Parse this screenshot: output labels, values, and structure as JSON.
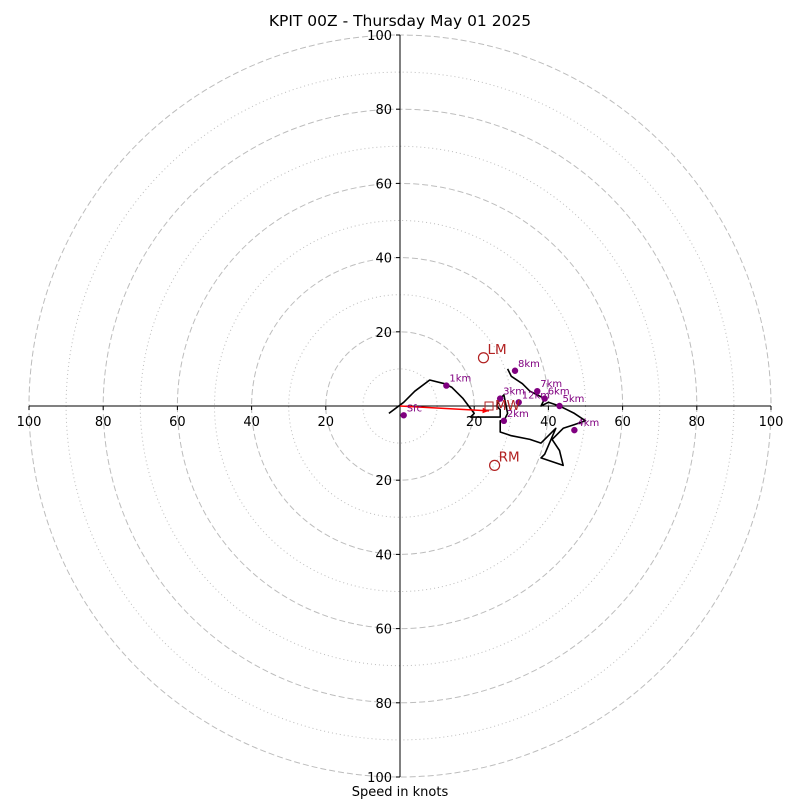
{
  "chart_data": {
    "type": "scatter",
    "title": "KPIT 00Z - Thursday May 01 2025",
    "xlabel": "Speed in knots",
    "ylabel": "",
    "units": "knots",
    "rings": {
      "major": [
        20,
        40,
        60,
        80,
        100
      ],
      "minor": [
        10,
        30,
        50,
        70,
        90
      ]
    },
    "axis_ticks": {
      "right": [
        "20",
        "40",
        "60",
        "80",
        "100"
      ],
      "left": [
        "20",
        "40",
        "60",
        "80",
        "100"
      ],
      "top": [
        "20",
        "40",
        "60",
        "80",
        "100"
      ],
      "bottom": [
        "20",
        "40",
        "60",
        "80",
        "100"
      ]
    },
    "xlim": [
      -100,
      100
    ],
    "ylim": [
      -100,
      100
    ],
    "hodograph_trace": [
      [
        -3,
        -2
      ],
      [
        1,
        1
      ],
      [
        4,
        4
      ],
      [
        8,
        7
      ],
      [
        12,
        6
      ],
      [
        14,
        5
      ],
      [
        17,
        2
      ],
      [
        20,
        -2
      ],
      [
        19,
        -3
      ],
      [
        23,
        -3
      ],
      [
        27,
        -3
      ],
      [
        27,
        -1
      ],
      [
        26,
        0
      ],
      [
        27,
        2
      ],
      [
        28,
        3
      ],
      [
        29,
        -2
      ],
      [
        28,
        -4
      ],
      [
        27,
        -4
      ],
      [
        27,
        -5
      ],
      [
        27,
        -7
      ],
      [
        30,
        -8
      ],
      [
        35,
        -9
      ],
      [
        38,
        -10
      ],
      [
        40,
        -8
      ],
      [
        42,
        -6
      ],
      [
        39,
        -13
      ],
      [
        38,
        -14
      ],
      [
        44,
        -16
      ],
      [
        43,
        -12
      ],
      [
        41,
        -9
      ],
      [
        44,
        -6
      ],
      [
        47,
        -5
      ],
      [
        50,
        -4
      ],
      [
        47,
        -2
      ],
      [
        45,
        -1
      ],
      [
        43,
        0
      ],
      [
        40,
        1
      ],
      [
        38,
        0
      ],
      [
        39,
        2
      ],
      [
        37,
        3
      ],
      [
        35,
        4
      ],
      [
        33,
        6
      ],
      [
        30,
        8
      ],
      [
        29,
        10
      ]
    ],
    "height_markers": [
      {
        "label": "Sfc",
        "x": 1,
        "y": -2.5
      },
      {
        "label": "1km",
        "x": 12.5,
        "y": 5.5
      },
      {
        "label": "2km",
        "x": 28,
        "y": -4
      },
      {
        "label": "3km",
        "x": 27,
        "y": 2
      },
      {
        "label": "4km",
        "x": 47,
        "y": -6.5
      },
      {
        "label": "5km",
        "x": 43,
        "y": 0
      },
      {
        "label": "6km",
        "x": 39,
        "y": 2
      },
      {
        "label": "7km",
        "x": 37,
        "y": 4
      },
      {
        "label": "8km",
        "x": 31,
        "y": 9.5
      },
      {
        "label": "12km",
        "x": 32,
        "y": 1
      }
    ],
    "storm_motion": [
      {
        "label": "LM",
        "x": 22.5,
        "y": 13
      },
      {
        "label": "RM",
        "x": 25.5,
        "y": -16
      },
      {
        "label": "MW",
        "x": 24,
        "y": 0
      }
    ],
    "shear_vector": {
      "from": [
        0,
        0
      ],
      "to": [
        24,
        -1.3
      ]
    },
    "colors": {
      "trace": "#000000",
      "markers": "#800080",
      "storm_motion": "#b22222",
      "shear_vector": "#ff0000",
      "rings": "#bdbdbd"
    },
    "grid": true
  }
}
